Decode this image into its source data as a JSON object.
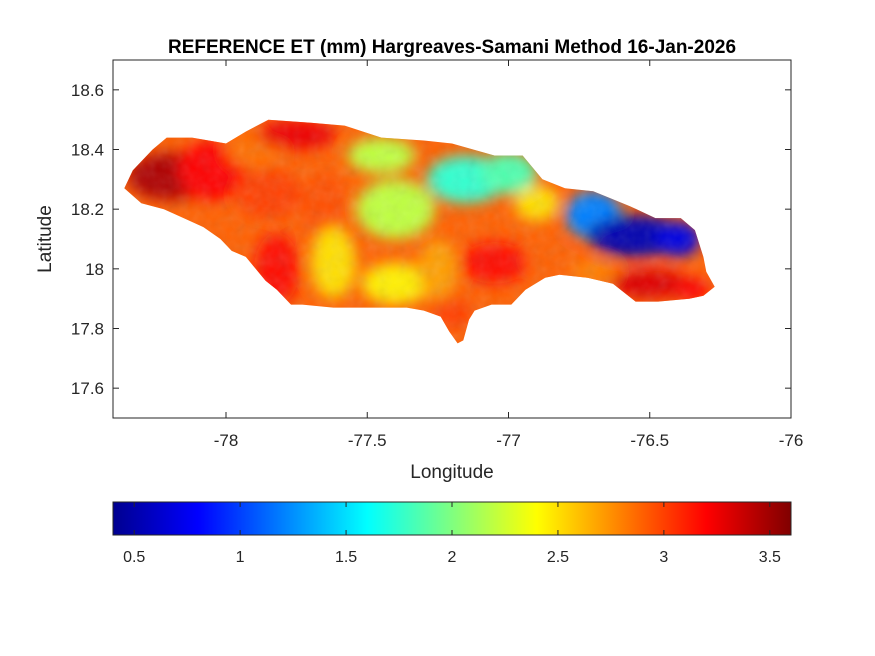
{
  "chart_data": {
    "type": "heatmap",
    "title": "REFERENCE ET (mm) Hargreaves-Samani Method  16-Jan-2026",
    "xlabel": "Longitude",
    "ylabel": "Latitude",
    "xlim": [
      -78.4,
      -76
    ],
    "ylim": [
      17.5,
      18.7
    ],
    "xticks": [
      -78,
      -77.5,
      -77,
      -76.5,
      -76
    ],
    "xtick_labels": [
      "-78",
      "-77.5",
      "-77",
      "-76.5",
      "-76"
    ],
    "yticks": [
      17.6,
      17.8,
      18,
      18.2,
      18.4,
      18.6
    ],
    "ytick_labels": [
      "17.6",
      "17.8",
      "18",
      "18.2",
      "18.4",
      "18.6"
    ],
    "colormap": "jet",
    "colorbar": {
      "orientation": "horizontal",
      "location": "below",
      "range": [
        0.4,
        3.6
      ],
      "ticks": [
        0.5,
        1,
        1.5,
        2,
        2.5,
        3,
        3.5
      ],
      "tick_labels": [
        "0.5",
        "1",
        "1.5",
        "2",
        "2.5",
        "3",
        "3.5"
      ]
    },
    "region": "Jamaica",
    "outline": [
      [
        -78.36,
        18.27
      ],
      [
        -78.33,
        18.33
      ],
      [
        -78.26,
        18.4
      ],
      [
        -78.21,
        18.44
      ],
      [
        -78.12,
        18.44
      ],
      [
        -78.0,
        18.42
      ],
      [
        -77.93,
        18.46
      ],
      [
        -77.85,
        18.5
      ],
      [
        -77.7,
        18.49
      ],
      [
        -77.58,
        18.48
      ],
      [
        -77.45,
        18.44
      ],
      [
        -77.3,
        18.43
      ],
      [
        -77.2,
        18.42
      ],
      [
        -77.05,
        18.38
      ],
      [
        -76.95,
        18.38
      ],
      [
        -76.88,
        18.3
      ],
      [
        -76.8,
        18.27
      ],
      [
        -76.7,
        18.26
      ],
      [
        -76.57,
        18.21
      ],
      [
        -76.48,
        18.17
      ],
      [
        -76.39,
        18.17
      ],
      [
        -76.34,
        18.13
      ],
      [
        -76.31,
        18.04
      ],
      [
        -76.3,
        17.99
      ],
      [
        -76.27,
        17.94
      ],
      [
        -76.31,
        17.91
      ],
      [
        -76.36,
        17.9
      ],
      [
        -76.47,
        17.89
      ],
      [
        -76.55,
        17.89
      ],
      [
        -76.63,
        17.95
      ],
      [
        -76.72,
        17.97
      ],
      [
        -76.82,
        17.98
      ],
      [
        -76.87,
        17.97
      ],
      [
        -76.94,
        17.93
      ],
      [
        -76.99,
        17.88
      ],
      [
        -77.06,
        17.88
      ],
      [
        -77.12,
        17.86
      ],
      [
        -77.14,
        17.83
      ],
      [
        -77.16,
        17.76
      ],
      [
        -77.18,
        17.75
      ],
      [
        -77.21,
        17.79
      ],
      [
        -77.24,
        17.84
      ],
      [
        -77.3,
        17.86
      ],
      [
        -77.36,
        17.87
      ],
      [
        -77.45,
        17.87
      ],
      [
        -77.52,
        17.87
      ],
      [
        -77.62,
        17.87
      ],
      [
        -77.73,
        17.88
      ],
      [
        -77.77,
        17.88
      ],
      [
        -77.82,
        17.93
      ],
      [
        -77.86,
        17.96
      ],
      [
        -77.93,
        18.04
      ],
      [
        -77.98,
        18.06
      ],
      [
        -78.02,
        18.1
      ],
      [
        -78.08,
        18.14
      ],
      [
        -78.15,
        18.17
      ],
      [
        -78.22,
        18.2
      ],
      [
        -78.3,
        18.22
      ],
      [
        -78.36,
        18.27
      ]
    ],
    "field": [
      {
        "lon": -78.2,
        "lat": 18.31,
        "value": 3.45,
        "rx": 0.15,
        "ry": 0.08
      },
      {
        "lon": -78.05,
        "lat": 18.33,
        "value": 3.2,
        "rx": 0.12,
        "ry": 0.1
      },
      {
        "lon": -77.9,
        "lat": 18.4,
        "value": 2.85,
        "rx": 0.1,
        "ry": 0.06
      },
      {
        "lon": -77.75,
        "lat": 18.45,
        "value": 3.25,
        "rx": 0.14,
        "ry": 0.05
      },
      {
        "lon": -77.85,
        "lat": 18.25,
        "value": 3.0,
        "rx": 0.12,
        "ry": 0.08
      },
      {
        "lon": -77.82,
        "lat": 18.0,
        "value": 3.15,
        "rx": 0.08,
        "ry": 0.12
      },
      {
        "lon": -77.65,
        "lat": 18.2,
        "value": 2.95,
        "rx": 0.08,
        "ry": 0.12
      },
      {
        "lon": -77.62,
        "lat": 18.02,
        "value": 2.5,
        "rx": 0.08,
        "ry": 0.12
      },
      {
        "lon": -77.45,
        "lat": 18.38,
        "value": 2.2,
        "rx": 0.12,
        "ry": 0.06
      },
      {
        "lon": -77.4,
        "lat": 18.2,
        "value": 2.2,
        "rx": 0.14,
        "ry": 0.1
      },
      {
        "lon": -77.4,
        "lat": 17.95,
        "value": 2.45,
        "rx": 0.12,
        "ry": 0.07
      },
      {
        "lon": -77.25,
        "lat": 18.0,
        "value": 2.7,
        "rx": 0.07,
        "ry": 0.1
      },
      {
        "lon": -77.15,
        "lat": 18.3,
        "value": 1.75,
        "rx": 0.14,
        "ry": 0.08
      },
      {
        "lon": -77.2,
        "lat": 17.85,
        "value": 3.0,
        "rx": 0.07,
        "ry": 0.05
      },
      {
        "lon": -77.0,
        "lat": 18.32,
        "value": 1.85,
        "rx": 0.1,
        "ry": 0.07
      },
      {
        "lon": -77.05,
        "lat": 18.02,
        "value": 3.15,
        "rx": 0.12,
        "ry": 0.07
      },
      {
        "lon": -76.9,
        "lat": 18.22,
        "value": 2.5,
        "rx": 0.08,
        "ry": 0.06
      },
      {
        "lon": -76.85,
        "lat": 18.03,
        "value": 2.9,
        "rx": 0.08,
        "ry": 0.05
      },
      {
        "lon": -76.7,
        "lat": 18.18,
        "value": 1.2,
        "rx": 0.1,
        "ry": 0.08
      },
      {
        "lon": -76.55,
        "lat": 18.11,
        "value": 0.55,
        "rx": 0.17,
        "ry": 0.07
      },
      {
        "lon": -76.4,
        "lat": 18.1,
        "value": 0.7,
        "rx": 0.08,
        "ry": 0.06
      },
      {
        "lon": -76.5,
        "lat": 17.95,
        "value": 3.3,
        "rx": 0.14,
        "ry": 0.05
      },
      {
        "lon": -76.35,
        "lat": 17.93,
        "value": 3.2,
        "rx": 0.06,
        "ry": 0.04
      },
      {
        "lon": -76.7,
        "lat": 17.99,
        "value": 2.8,
        "rx": 0.08,
        "ry": 0.04
      }
    ]
  }
}
